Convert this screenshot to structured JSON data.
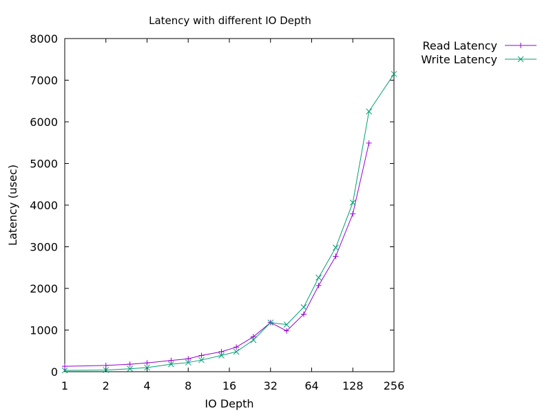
{
  "chart_data": {
    "type": "line",
    "title": "Latency with different IO Depth",
    "xlabel": "IO Depth",
    "ylabel": "Latency (usec)",
    "x_scale": "log2",
    "xlim": [
      1,
      256
    ],
    "ylim": [
      0,
      8000
    ],
    "x_ticks": [
      "1",
      "2",
      "4",
      "8",
      "16",
      "32",
      "64",
      "128",
      "256"
    ],
    "y_ticks": [
      "0",
      "1000",
      "2000",
      "3000",
      "4000",
      "5000",
      "6000",
      "7000",
      "8000"
    ],
    "grid": false,
    "legend_position": "outside-top-right",
    "series": [
      {
        "name": "Read Latency",
        "color": "#9400d3",
        "marker": "plus",
        "x": [
          1,
          2,
          3,
          4,
          6,
          8,
          10,
          14,
          18,
          24,
          32,
          42,
          56,
          72,
          96,
          128,
          168
        ],
        "y": [
          130,
          150,
          180,
          210,
          270,
          310,
          390,
          480,
          590,
          840,
          1180,
          980,
          1380,
          2070,
          2770,
          3790,
          5490
        ]
      },
      {
        "name": "Write Latency",
        "color": "#009e73",
        "marker": "x",
        "x": [
          1,
          2,
          3,
          4,
          6,
          8,
          10,
          14,
          18,
          24,
          32,
          42,
          56,
          72,
          96,
          128,
          168,
          256
        ],
        "y": [
          30,
          40,
          70,
          100,
          180,
          220,
          280,
          390,
          480,
          760,
          1180,
          1130,
          1550,
          2260,
          2980,
          4060,
          6250,
          7150
        ]
      }
    ]
  }
}
